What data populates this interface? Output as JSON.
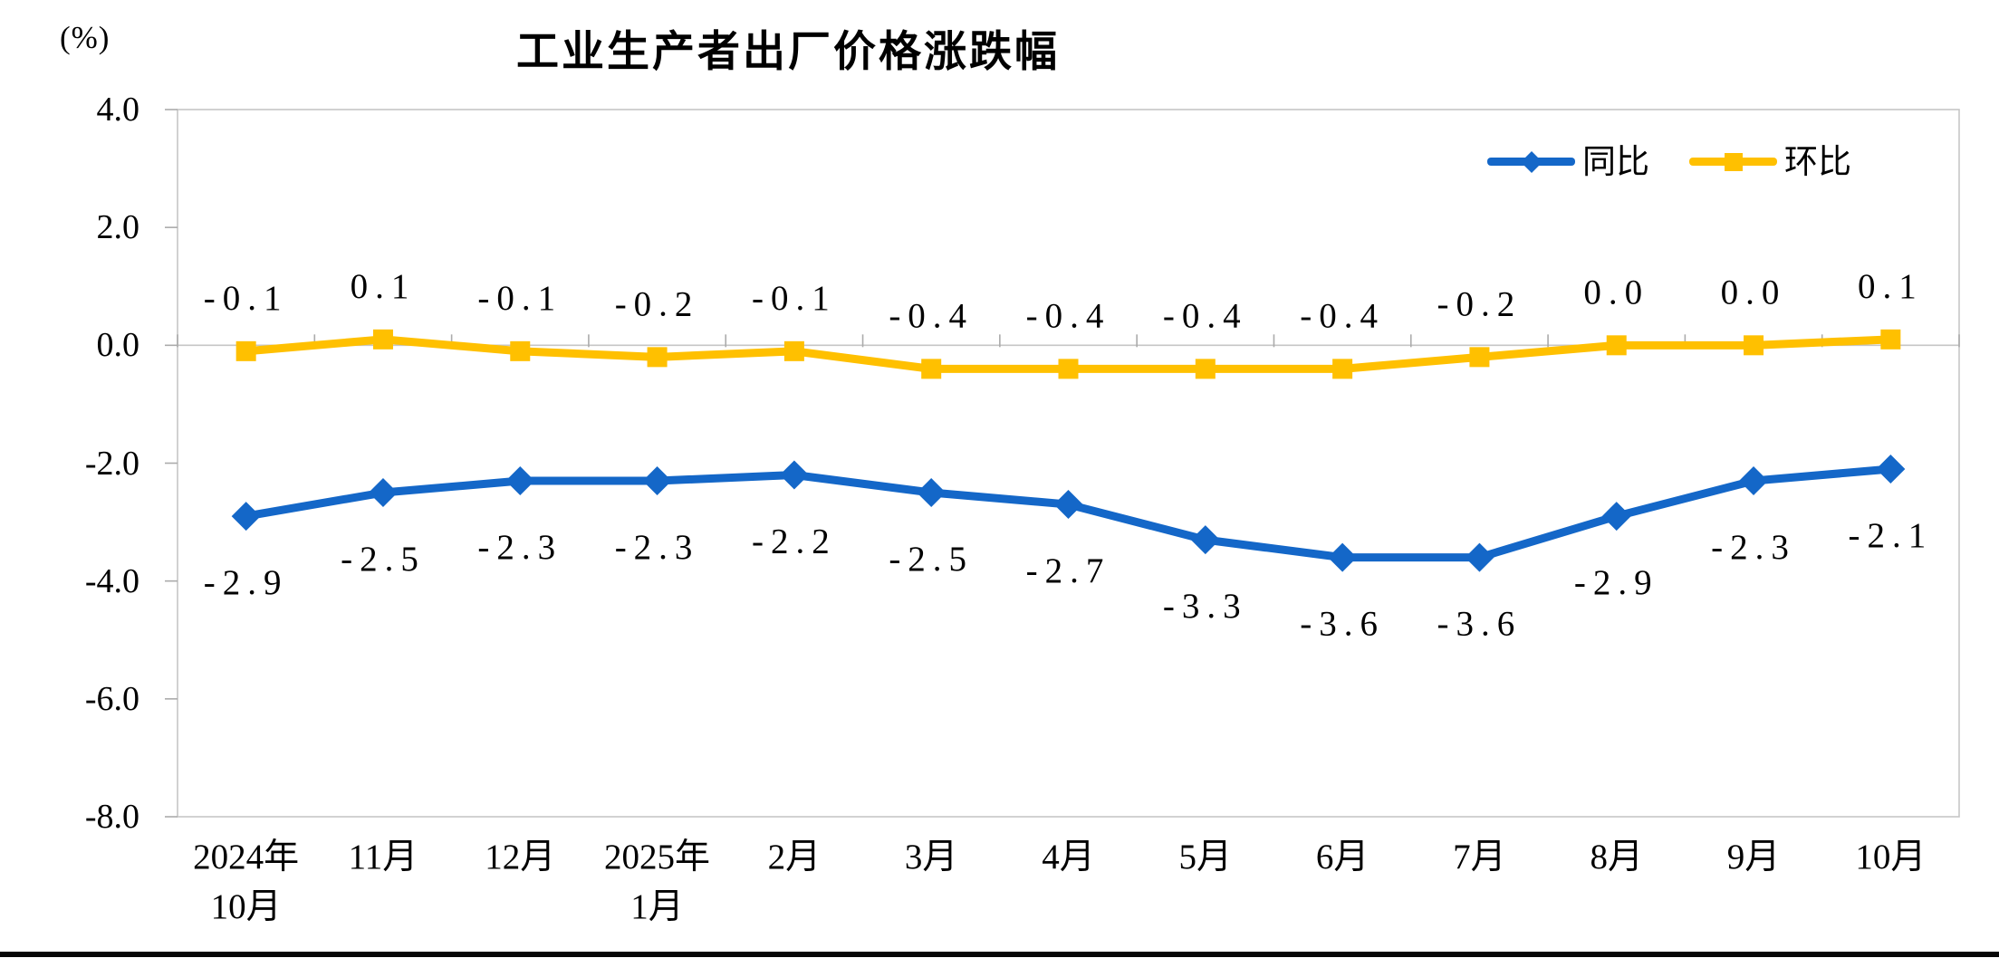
{
  "chart_data": {
    "type": "line",
    "title": "工业生产者出厂价格涨跌幅",
    "unit": "(%)",
    "categories": [
      "2024年\n10月",
      "11月",
      "12月",
      "2025年\n1月",
      "2月",
      "3月",
      "4月",
      "5月",
      "6月",
      "7月",
      "8月",
      "9月",
      "10月"
    ],
    "series": [
      {
        "id": "tongbi",
        "name": "同比",
        "color": "#1467C8",
        "marker": "diamond",
        "label_position": "below",
        "values": [
          -2.9,
          -2.5,
          -2.3,
          -2.3,
          -2.2,
          -2.5,
          -2.7,
          -3.3,
          -3.6,
          -3.6,
          -2.9,
          -2.3,
          -2.1
        ]
      },
      {
        "id": "huanbi",
        "name": "环比",
        "color": "#FFC000",
        "marker": "square",
        "label_position": "above",
        "values": [
          -0.1,
          0.1,
          -0.1,
          -0.2,
          -0.1,
          -0.4,
          -0.4,
          -0.4,
          -0.4,
          -0.2,
          0.0,
          0.0,
          0.1
        ]
      }
    ],
    "ylim": [
      -8.0,
      4.0
    ],
    "ytick_step": 2.0,
    "ytick_labels": [
      "4.0",
      "2.0",
      "0.0",
      "-2.0",
      "-4.0",
      "-6.0",
      "-8.0"
    ],
    "grid": false,
    "legend_position": "top-right-inside",
    "axis_color": "#C6C6C6",
    "tick_color": "#ABABAB",
    "label_color": "#000000",
    "bottom_bar_color": "#060606"
  }
}
